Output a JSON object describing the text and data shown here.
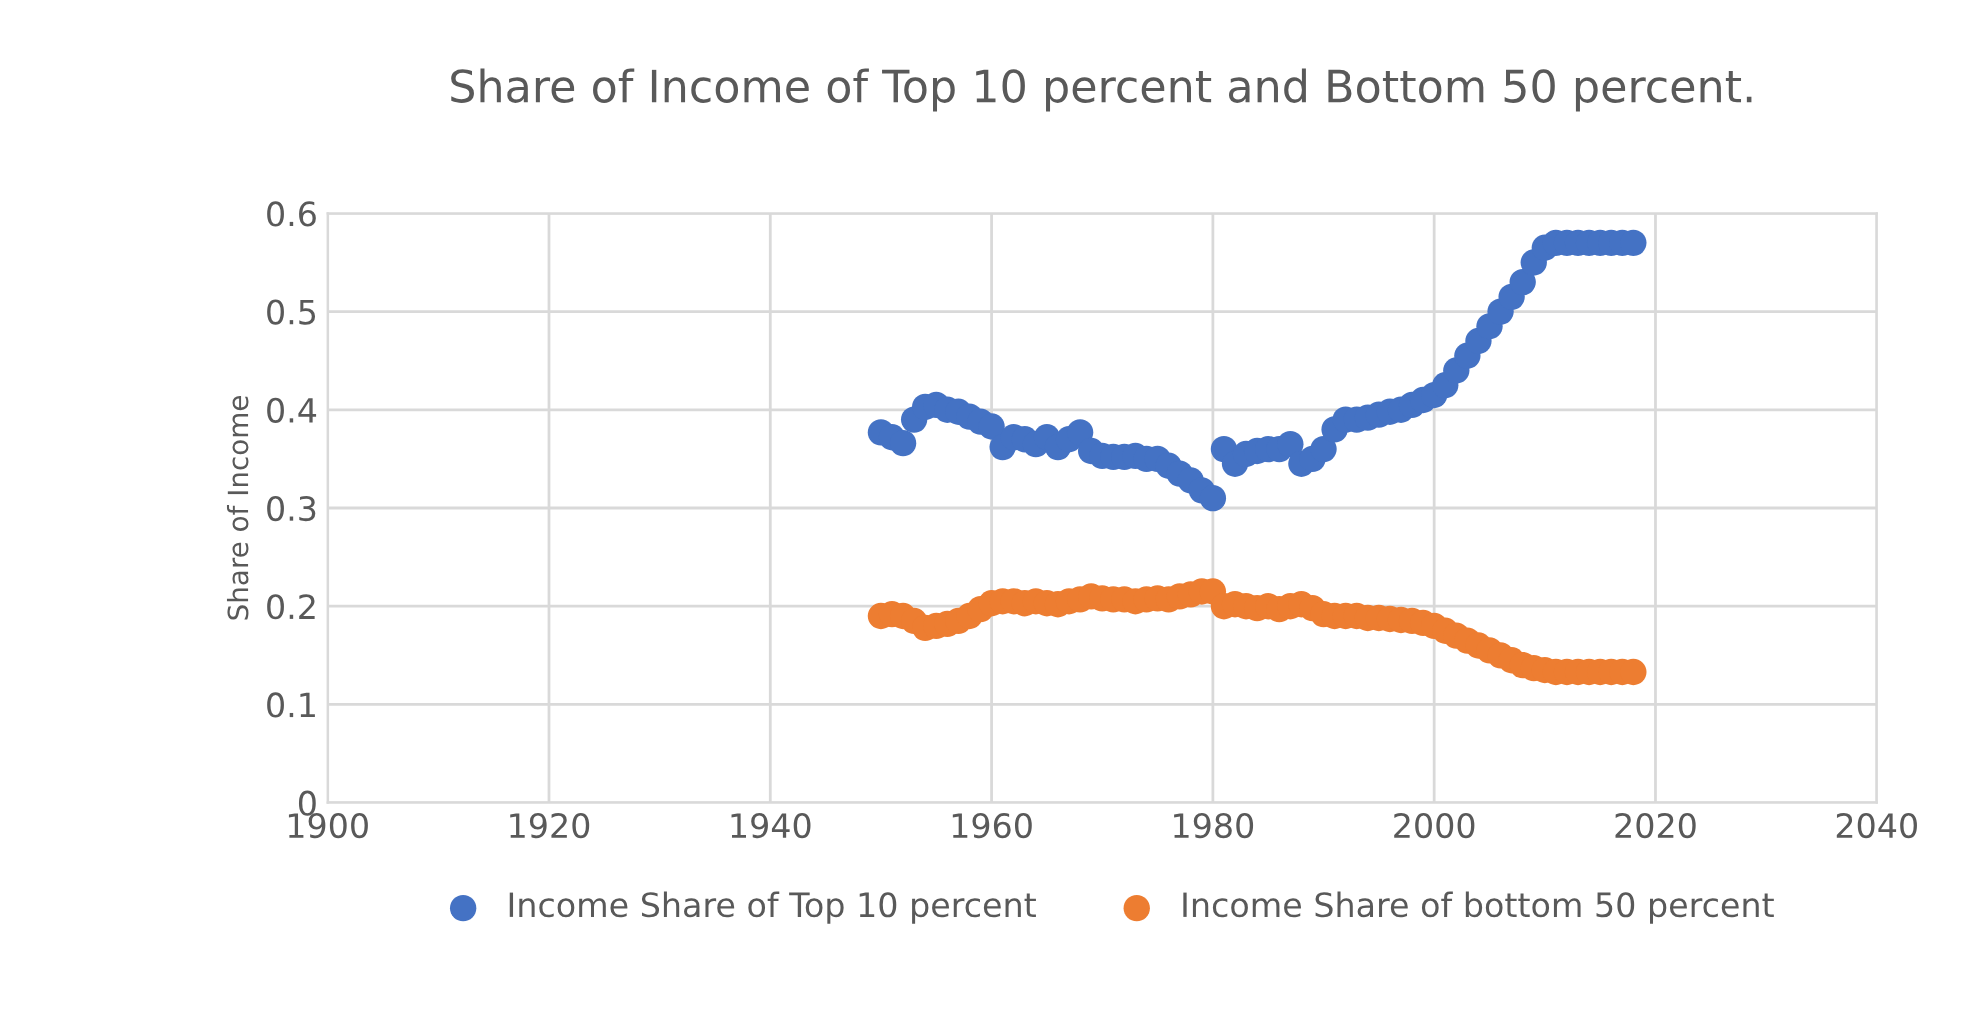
{
  "chart_data": {
    "type": "scatter",
    "title": "Share of Income of Top 10 percent and Bottom 50 percent.",
    "ylabel": "Share of Income",
    "x": [
      1950,
      1951,
      1952,
      1953,
      1954,
      1955,
      1956,
      1957,
      1958,
      1959,
      1960,
      1961,
      1962,
      1963,
      1964,
      1965,
      1966,
      1967,
      1968,
      1969,
      1970,
      1971,
      1972,
      1973,
      1974,
      1975,
      1976,
      1977,
      1978,
      1979,
      1980,
      1981,
      1982,
      1983,
      1984,
      1985,
      1986,
      1987,
      1988,
      1989,
      1990,
      1991,
      1992,
      1993,
      1994,
      1995,
      1996,
      1997,
      1998,
      1999,
      2000,
      2001,
      2002,
      2003,
      2004,
      2005,
      2006,
      2007,
      2008,
      2009,
      2010,
      2011,
      2012,
      2013,
      2014,
      2015,
      2016,
      2017,
      2018
    ],
    "series": [
      {
        "name": "Income Share of Top 10 percent",
        "color": "#4472c4",
        "values": [
          0.377,
          0.372,
          0.366,
          0.39,
          0.403,
          0.405,
          0.4,
          0.398,
          0.393,
          0.388,
          0.383,
          0.362,
          0.372,
          0.37,
          0.365,
          0.372,
          0.362,
          0.37,
          0.377,
          0.358,
          0.353,
          0.352,
          0.352,
          0.353,
          0.35,
          0.35,
          0.343,
          0.335,
          0.328,
          0.318,
          0.31,
          0.36,
          0.345,
          0.355,
          0.358,
          0.36,
          0.36,
          0.365,
          0.345,
          0.35,
          0.36,
          0.38,
          0.39,
          0.39,
          0.392,
          0.395,
          0.398,
          0.4,
          0.405,
          0.41,
          0.415,
          0.425,
          0.44,
          0.455,
          0.47,
          0.485,
          0.5,
          0.515,
          0.53,
          0.55,
          0.565,
          0.57,
          0.57,
          0.57,
          0.57,
          0.57,
          0.57,
          0.57,
          0.57
        ]
      },
      {
        "name": "Income Share of bottom 50 percent",
        "color": "#ed7d31",
        "values": [
          0.19,
          0.192,
          0.19,
          0.185,
          0.178,
          0.18,
          0.182,
          0.185,
          0.19,
          0.197,
          0.203,
          0.205,
          0.205,
          0.203,
          0.205,
          0.203,
          0.202,
          0.205,
          0.207,
          0.21,
          0.208,
          0.207,
          0.207,
          0.205,
          0.207,
          0.208,
          0.207,
          0.21,
          0.212,
          0.215,
          0.215,
          0.2,
          0.202,
          0.2,
          0.198,
          0.2,
          0.197,
          0.2,
          0.202,
          0.198,
          0.192,
          0.19,
          0.19,
          0.19,
          0.188,
          0.188,
          0.187,
          0.186,
          0.185,
          0.183,
          0.18,
          0.175,
          0.17,
          0.165,
          0.16,
          0.155,
          0.15,
          0.145,
          0.14,
          0.137,
          0.135,
          0.133,
          0.133,
          0.133,
          0.133,
          0.133,
          0.133,
          0.133,
          0.133
        ]
      }
    ],
    "xlim": [
      1900,
      2040
    ],
    "xticks": [
      1900,
      1920,
      1940,
      1960,
      1980,
      2000,
      2020,
      2040
    ],
    "ylim": [
      0,
      0.6
    ],
    "yticks": [
      0,
      0.1,
      0.2,
      0.3,
      0.4,
      0.5,
      0.6
    ],
    "grid": true,
    "legend": "bottom",
    "marker": "circle"
  }
}
